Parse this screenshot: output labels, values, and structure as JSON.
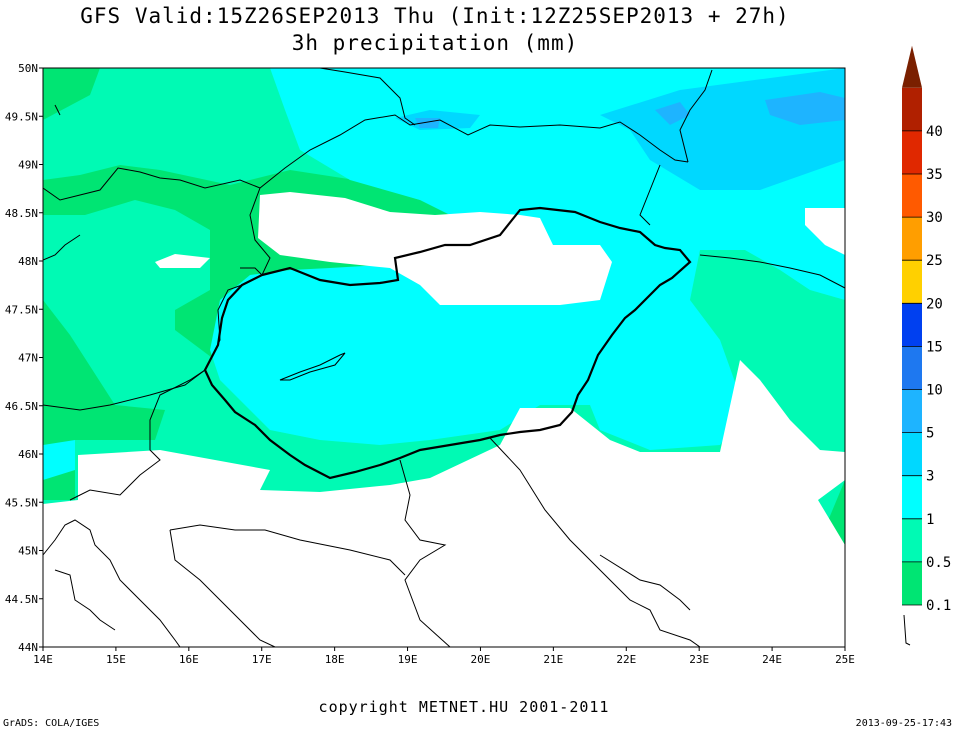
{
  "header": {
    "title_line1": "GFS Valid:15Z26SEP2013 Thu (Init:12Z25SEP2013 + 27h)",
    "title_line2": "3h precipitation (mm)"
  },
  "axes": {
    "lat_labels": [
      "50N",
      "49.5N",
      "49N",
      "48.5N",
      "48N",
      "47.5N",
      "47N",
      "46.5N",
      "46N",
      "45.5N",
      "45N",
      "44.5N",
      "44N"
    ],
    "lon_labels": [
      "14E",
      "15E",
      "16E",
      "17E",
      "18E",
      "19E",
      "20E",
      "21E",
      "22E",
      "23E",
      "24E",
      "25E"
    ],
    "lat_range": [
      44,
      50
    ],
    "lon_range": [
      14,
      25
    ]
  },
  "colorbar": {
    "labels": [
      "0.1",
      "0.5",
      "1",
      "3",
      "5",
      "10",
      "15",
      "20",
      "25",
      "30",
      "35",
      "40"
    ],
    "colors": [
      "#00e573",
      "#00fab4",
      "#00ffff",
      "#00d8ff",
      "#1eb4ff",
      "#1e78f0",
      "#0040f0",
      "#ffd000",
      "#ff9e00",
      "#ff5a00",
      "#e02800",
      "#b02000",
      "#7a2000"
    ]
  },
  "footer": {
    "copyright": "copyright METNET.HU 2001-2011",
    "software": "GrADS: COLA/IGES",
    "timestamp": "2013-09-25-17:43"
  }
}
